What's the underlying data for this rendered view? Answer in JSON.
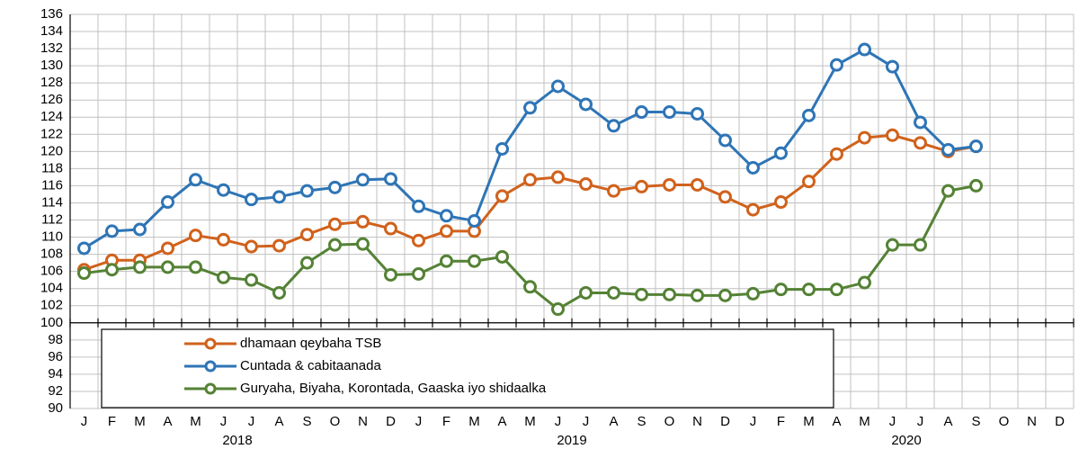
{
  "chart_data": {
    "type": "line",
    "categories": [
      "J",
      "F",
      "M",
      "A",
      "M",
      "J",
      "J",
      "A",
      "S",
      "O",
      "N",
      "D",
      "J",
      "F",
      "M",
      "A",
      "M",
      "J",
      "J",
      "A",
      "S",
      "O",
      "N",
      "D",
      "J",
      "F",
      "M",
      "A",
      "M",
      "J",
      "J",
      "A",
      "S",
      "O",
      "N",
      "D"
    ],
    "category_groups": [
      "2018",
      "2019",
      "2020"
    ],
    "series": [
      {
        "name": "dhamaan qeybaha TSB",
        "color": "#d0621c",
        "values": [
          106.2,
          107.3,
          107.3,
          108.7,
          110.2,
          109.7,
          108.9,
          109.0,
          110.3,
          111.5,
          111.8,
          111.0,
          109.6,
          110.7,
          110.7,
          114.8,
          116.7,
          117.0,
          116.2,
          115.4,
          115.9,
          116.1,
          116.1,
          114.7,
          113.2,
          114.1,
          116.5,
          119.7,
          121.6,
          121.9,
          121.0,
          120.0,
          120.6,
          null,
          null,
          null
        ]
      },
      {
        "name": "Cuntada & cabitaanada",
        "color": "#2e75b6",
        "values": [
          108.7,
          110.7,
          110.9,
          114.1,
          116.7,
          115.5,
          114.4,
          114.7,
          115.4,
          115.8,
          116.7,
          116.8,
          113.6,
          112.5,
          111.9,
          120.3,
          125.1,
          127.6,
          125.5,
          123.0,
          124.6,
          124.6,
          124.4,
          121.3,
          118.1,
          119.8,
          124.2,
          130.1,
          131.9,
          129.9,
          123.4,
          120.2,
          120.6,
          null,
          null,
          null
        ]
      },
      {
        "name": "Guryaha, Biyaha, Korontada, Gaaska iyo shidaalka",
        "color": "#548235",
        "values": [
          105.8,
          106.2,
          106.5,
          106.5,
          106.5,
          105.3,
          105.0,
          103.5,
          107.0,
          109.1,
          109.2,
          105.6,
          105.7,
          107.2,
          107.2,
          107.7,
          104.2,
          101.6,
          103.5,
          103.5,
          103.3,
          103.3,
          103.2,
          103.2,
          103.4,
          103.9,
          103.9,
          103.9,
          104.7,
          109.1,
          109.1,
          115.4,
          116.0,
          null,
          null,
          null
        ]
      }
    ],
    "ylim": [
      90,
      136
    ],
    "yticks": [
      90,
      92,
      94,
      96,
      98,
      100,
      102,
      104,
      106,
      108,
      110,
      112,
      114,
      116,
      118,
      120,
      122,
      124,
      126,
      128,
      130,
      132,
      134,
      136
    ],
    "x_axis_crosses": 100,
    "grid": true,
    "legend": "lower left"
  }
}
